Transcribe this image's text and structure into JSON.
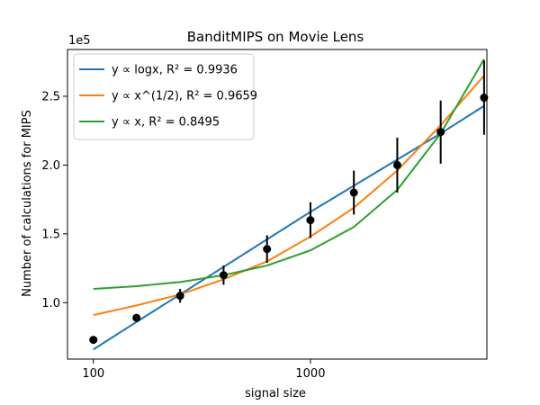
{
  "chart_data": {
    "type": "scatter",
    "title": "BanditMIPS on Movie Lens",
    "xlabel": "signal size",
    "ylabel": "Number of calculations for MIPS",
    "x_scale": "log",
    "y_offset_label": "1e5",
    "xlim": [
      76,
      6500
    ],
    "ylim": [
      0.59,
      2.84
    ],
    "x_ticks": [
      {
        "value": 100,
        "label": "100"
      },
      {
        "value": 1000,
        "label": "1000"
      }
    ],
    "y_ticks": [
      {
        "value": 1.0,
        "label": "1.0"
      },
      {
        "value": 1.5,
        "label": "1.5"
      },
      {
        "value": 2.0,
        "label": "2.0"
      },
      {
        "value": 2.5,
        "label": "2.5"
      }
    ],
    "grid": false,
    "legend_position": "top-left",
    "points": [
      {
        "x": 100,
        "y": 0.73,
        "err": 0.0
      },
      {
        "x": 158,
        "y": 0.89,
        "err": 0.02
      },
      {
        "x": 251,
        "y": 1.05,
        "err": 0.05
      },
      {
        "x": 398,
        "y": 1.2,
        "err": 0.07
      },
      {
        "x": 631,
        "y": 1.39,
        "err": 0.1
      },
      {
        "x": 1000,
        "y": 1.6,
        "err": 0.13
      },
      {
        "x": 1585,
        "y": 1.8,
        "err": 0.16
      },
      {
        "x": 2512,
        "y": 2.0,
        "err": 0.2
      },
      {
        "x": 3981,
        "y": 2.24,
        "err": 0.23
      },
      {
        "x": 6310,
        "y": 2.49,
        "err": 0.27
      }
    ],
    "series": [
      {
        "name": "y ∝ logx,  R² = 0.9936",
        "color": "#1f77b4",
        "x": [
          100,
          158,
          251,
          398,
          631,
          1000,
          1585,
          2512,
          3981,
          6310
        ],
        "y": [
          0.66,
          0.86,
          1.06,
          1.26,
          1.46,
          1.66,
          1.85,
          2.04,
          2.23,
          2.43
        ]
      },
      {
        "name": "y ∝ x^(1/2),  R² = 0.9659",
        "color": "#ff7f0e",
        "x": [
          100,
          158,
          251,
          398,
          631,
          1000,
          1585,
          2512,
          3981,
          6310
        ],
        "y": [
          0.91,
          0.98,
          1.06,
          1.17,
          1.3,
          1.48,
          1.69,
          1.96,
          2.29,
          2.65
        ]
      },
      {
        "name": "y ∝ x,  R² = 0.8495",
        "color": "#2ca02c",
        "x": [
          100,
          158,
          251,
          398,
          631,
          1000,
          1585,
          2512,
          3981,
          6310
        ],
        "y": [
          1.1,
          1.12,
          1.15,
          1.2,
          1.27,
          1.38,
          1.55,
          1.82,
          2.23,
          2.77
        ]
      }
    ]
  }
}
